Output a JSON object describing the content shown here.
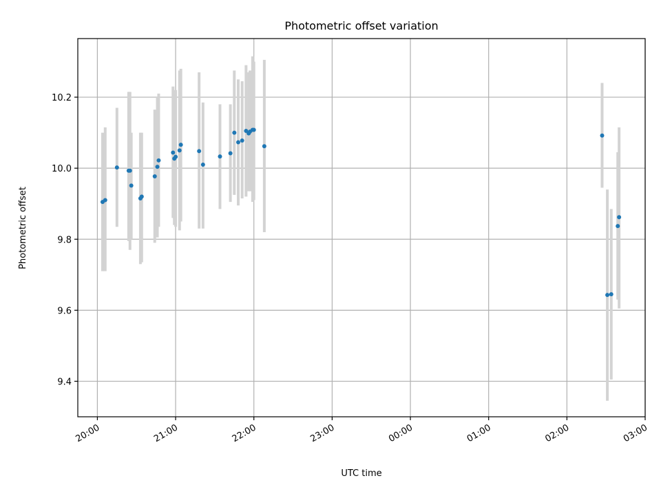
{
  "chart_data": {
    "type": "scatter",
    "title": "Photometric offset variation",
    "xlabel": "UTC time",
    "ylabel": "Photometric offset",
    "xlim": [
      "19:45",
      "03:00"
    ],
    "ylim": [
      9.3,
      10.365
    ],
    "x_ticks": [
      "20:00",
      "21:00",
      "22:00",
      "23:00",
      "00:00",
      "01:00",
      "02:00",
      "03:00"
    ],
    "y_ticks": [
      9.4,
      9.6,
      9.8,
      10.0,
      10.2
    ],
    "grid": true,
    "marker_color": "#1f77b4",
    "errorbar_color": "#d3d3d3",
    "points": [
      {
        "x": "20:04",
        "y": 9.905,
        "lo": 9.71,
        "hi": 10.1
      },
      {
        "x": "20:06",
        "y": 9.91,
        "lo": 9.71,
        "hi": 10.115
      },
      {
        "x": "20:15",
        "y": 10.002,
        "lo": 9.835,
        "hi": 10.17
      },
      {
        "x": "20:24",
        "y": 9.993,
        "lo": 9.795,
        "hi": 10.215
      },
      {
        "x": "20:25",
        "y": 9.993,
        "lo": 9.77,
        "hi": 10.215
      },
      {
        "x": "20:26",
        "y": 9.951,
        "lo": 9.8,
        "hi": 10.1
      },
      {
        "x": "20:33",
        "y": 9.915,
        "lo": 9.73,
        "hi": 10.1
      },
      {
        "x": "20:34",
        "y": 9.92,
        "lo": 9.735,
        "hi": 10.1
      },
      {
        "x": "20:44",
        "y": 9.977,
        "lo": 9.79,
        "hi": 10.165
      },
      {
        "x": "20:46",
        "y": 10.004,
        "lo": 9.805,
        "hi": 10.2
      },
      {
        "x": "20:47",
        "y": 10.022,
        "lo": 9.835,
        "hi": 10.21
      },
      {
        "x": "20:58",
        "y": 10.044,
        "lo": 9.86,
        "hi": 10.23
      },
      {
        "x": "20:59",
        "y": 10.027,
        "lo": 9.84,
        "hi": 10.21
      },
      {
        "x": "21:00",
        "y": 10.032,
        "lo": 9.835,
        "hi": 10.22
      },
      {
        "x": "21:03",
        "y": 10.05,
        "lo": 9.825,
        "hi": 10.275
      },
      {
        "x": "21:04",
        "y": 10.066,
        "lo": 9.85,
        "hi": 10.28
      },
      {
        "x": "21:18",
        "y": 10.048,
        "lo": 9.83,
        "hi": 10.27
      },
      {
        "x": "21:21",
        "y": 10.01,
        "lo": 9.83,
        "hi": 10.185
      },
      {
        "x": "21:34",
        "y": 10.033,
        "lo": 9.885,
        "hi": 10.18
      },
      {
        "x": "21:42",
        "y": 10.042,
        "lo": 9.905,
        "hi": 10.18
      },
      {
        "x": "21:45",
        "y": 10.1,
        "lo": 9.925,
        "hi": 10.275
      },
      {
        "x": "21:48",
        "y": 10.073,
        "lo": 9.895,
        "hi": 10.25
      },
      {
        "x": "21:51",
        "y": 10.078,
        "lo": 9.915,
        "hi": 10.245
      },
      {
        "x": "21:54",
        "y": 10.105,
        "lo": 9.92,
        "hi": 10.29
      },
      {
        "x": "21:56",
        "y": 10.098,
        "lo": 9.935,
        "hi": 10.27
      },
      {
        "x": "21:57",
        "y": 10.103,
        "lo": 9.935,
        "hi": 10.275
      },
      {
        "x": "21:59",
        "y": 10.108,
        "lo": 9.905,
        "hi": 10.315
      },
      {
        "x": "22:00",
        "y": 10.108,
        "lo": 9.91,
        "hi": 10.3
      },
      {
        "x": "22:08",
        "y": 10.062,
        "lo": 9.82,
        "hi": 10.305
      },
      {
        "x": "02:27",
        "y": 10.092,
        "lo": 9.945,
        "hi": 10.24
      },
      {
        "x": "02:31",
        "y": 9.643,
        "lo": 9.345,
        "hi": 9.94
      },
      {
        "x": "02:34",
        "y": 9.645,
        "lo": 9.405,
        "hi": 9.885
      },
      {
        "x": "02:39",
        "y": 9.837,
        "lo": 9.63,
        "hi": 10.045
      },
      {
        "x": "02:40",
        "y": 9.862,
        "lo": 9.605,
        "hi": 10.115
      }
    ]
  }
}
